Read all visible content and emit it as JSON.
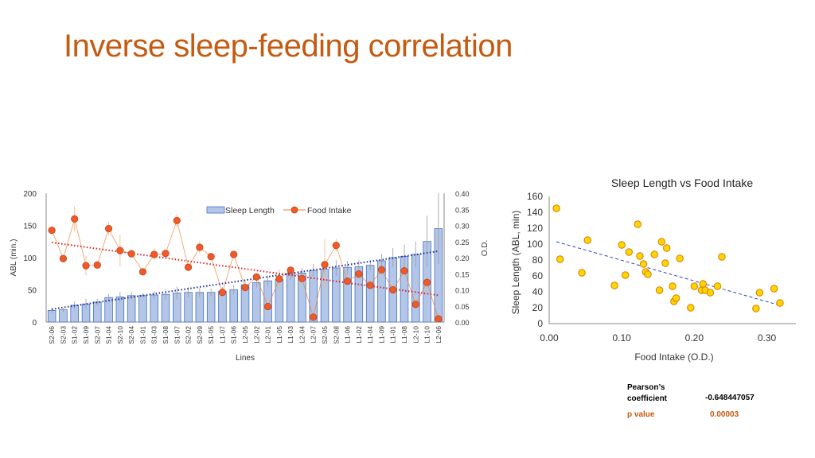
{
  "slide": {
    "title": "Inverse sleep-feeding correlation"
  },
  "chart_data": [
    {
      "type": "bar",
      "title": "",
      "xlabel": "Lines",
      "ylabel": "ABL (min.)",
      "y2label": "O.D.",
      "ylim": [
        0,
        200
      ],
      "y2lim": [
        0,
        0.4
      ],
      "yticks": [
        "0",
        "50",
        "100",
        "150",
        "200"
      ],
      "y2ticks": [
        "0.00",
        "0.05",
        "0.10",
        "0.15",
        "0.20",
        "0.25",
        "0.30",
        "0.35",
        "0.40"
      ],
      "categories": [
        "S2-06",
        "S2-03",
        "S1-02",
        "S1-09",
        "S2-07",
        "S1-04",
        "S2-10",
        "S2-04",
        "S1-01",
        "S1-03",
        "S1-08",
        "S1-07",
        "S2-02",
        "S2-09",
        "S1-05",
        "L1-07",
        "S1-06",
        "L2-05",
        "L2-02",
        "L2-01",
        "L1-05",
        "L1-03",
        "L2-04",
        "L2-07",
        "S2-05",
        "S2-08",
        "L1-06",
        "L1-02",
        "L1-04",
        "L1-09",
        "L1-01",
        "L1-08",
        "L2-10",
        "L1-10",
        "L2-06"
      ],
      "legend": [
        "Sleep Length",
        "Food Intake"
      ],
      "series": [
        {
          "name": "Sleep Length",
          "type": "bar",
          "values": [
            18,
            19,
            26,
            28,
            31,
            38,
            39,
            41,
            41,
            42,
            43,
            45,
            46,
            46,
            46,
            48,
            50,
            58,
            61,
            64,
            66,
            75,
            76,
            80,
            82,
            84,
            85,
            86,
            88,
            95,
            100,
            102,
            105,
            125,
            145
          ],
          "errors": [
            4,
            3,
            6,
            8,
            5,
            6,
            8,
            6,
            4,
            6,
            8,
            10,
            8,
            7,
            6,
            6,
            7,
            7,
            7,
            8,
            10,
            9,
            8,
            10,
            10,
            12,
            10,
            10,
            8,
            11,
            15,
            18,
            20,
            40,
            55
          ]
        },
        {
          "name": "Food Intake",
          "type": "line",
          "axis": "right",
          "values": [
            0.285,
            0.197,
            0.32,
            0.175,
            0.177,
            0.29,
            0.222,
            0.212,
            0.156,
            0.21,
            0.213,
            0.315,
            0.17,
            0.232,
            0.203,
            0.092,
            0.21,
            0.107,
            0.14,
            0.048,
            0.134,
            0.161,
            0.135,
            0.015,
            0.178,
            0.238,
            0.127,
            0.149,
            0.114,
            0.162,
            0.1,
            0.159,
            0.055,
            0.123,
            0.01
          ],
          "errors": [
            0.01,
            0.01,
            0.04,
            0.03,
            0.01,
            0.02,
            0.05,
            0.01,
            0.01,
            0.02,
            0.01,
            0.02,
            0.01,
            0.02,
            0.01,
            0.01,
            0.01,
            0.01,
            0.01,
            0.01,
            0.03,
            0.01,
            0.01,
            0.01,
            0.08,
            0.02,
            0.01,
            0.01,
            0.01,
            0.01,
            0.01,
            0.01,
            0.01,
            0.02,
            0.01
          ]
        }
      ],
      "trendlines": [
        {
          "series": "Sleep Length",
          "from": 20,
          "to": 110
        },
        {
          "series": "Food Intake",
          "from": 0.247,
          "to": 0.083
        }
      ],
      "colors": {
        "bar_fill": "#b4c6e7",
        "bar_edge": "#4472c4",
        "line": "#ed7d31",
        "marker": "#f05a28",
        "bar_trend": "#1f2d9c",
        "line_trend": "#e02020"
      }
    },
    {
      "type": "scatter",
      "title": "Sleep Length vs Food Intake",
      "xlabel": "Food Intake (O.D.)",
      "ylabel": "Sleep Length (ABL, min)",
      "xlim": [
        0,
        0.34
      ],
      "ylim": [
        0,
        160
      ],
      "xticks": [
        "0.00",
        "0.10",
        "0.20",
        "0.30"
      ],
      "yticks": [
        "0",
        "20",
        "40",
        "60",
        "80",
        "100",
        "120",
        "140",
        "160"
      ],
      "points": [
        [
          0.01,
          145
        ],
        [
          0.015,
          81
        ],
        [
          0.045,
          64
        ],
        [
          0.053,
          105
        ],
        [
          0.09,
          48
        ],
        [
          0.1,
          99
        ],
        [
          0.105,
          61
        ],
        [
          0.11,
          90
        ],
        [
          0.122,
          125
        ],
        [
          0.125,
          85
        ],
        [
          0.13,
          75
        ],
        [
          0.133,
          65
        ],
        [
          0.136,
          62
        ],
        [
          0.145,
          87
        ],
        [
          0.152,
          42
        ],
        [
          0.155,
          103
        ],
        [
          0.16,
          76
        ],
        [
          0.162,
          95
        ],
        [
          0.17,
          47
        ],
        [
          0.172,
          28
        ],
        [
          0.175,
          32
        ],
        [
          0.18,
          82
        ],
        [
          0.195,
          20
        ],
        [
          0.2,
          47
        ],
        [
          0.21,
          42
        ],
        [
          0.212,
          50
        ],
        [
          0.215,
          42
        ],
        [
          0.222,
          39
        ],
        [
          0.232,
          47
        ],
        [
          0.238,
          84
        ],
        [
          0.285,
          19
        ],
        [
          0.29,
          39
        ],
        [
          0.31,
          44
        ],
        [
          0.318,
          26
        ]
      ],
      "trendline": {
        "x": [
          0.01,
          0.318
        ],
        "y": [
          103,
          23
        ]
      },
      "colors": {
        "marker_fill": "#ffd700",
        "marker_edge": "#d97a00",
        "trend": "#2b3fc9"
      }
    }
  ],
  "stats": {
    "pearson_label": "Pearson’s coefficient",
    "pearson_label_line1": "Pearson’s",
    "pearson_label_line2": "coefficient",
    "pearson_value": "-0.648447057",
    "pvalue_label": "p value",
    "pvalue_value": "0.00003",
    "pvalue_color": "#c55a11"
  }
}
